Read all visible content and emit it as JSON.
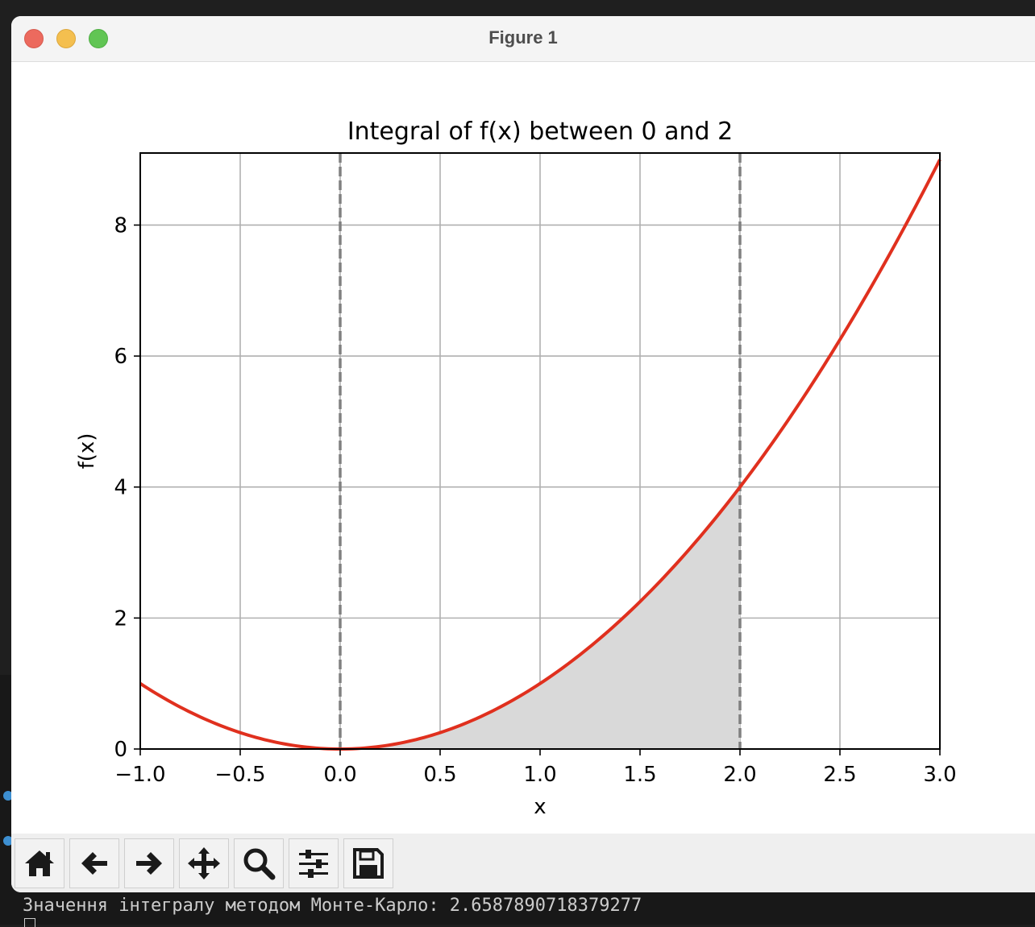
{
  "window": {
    "title": "Figure 1"
  },
  "terminal": {
    "output_line": "Значення інтегралу методом Монте-Карло: 2.6587890718379277"
  },
  "toolbar": {
    "buttons": [
      {
        "name": "home-button",
        "icon": "home-icon"
      },
      {
        "name": "back-button",
        "icon": "arrow-left-icon"
      },
      {
        "name": "forward-button",
        "icon": "arrow-right-icon"
      },
      {
        "name": "pan-button",
        "icon": "move-icon"
      },
      {
        "name": "zoom-button",
        "icon": "magnifier-icon"
      },
      {
        "name": "configure-subplots-button",
        "icon": "sliders-icon"
      },
      {
        "name": "save-button",
        "icon": "floppy-disk-icon"
      }
    ]
  },
  "chart_data": {
    "type": "line",
    "title": "Integral of f(x) between 0 and 2",
    "xlabel": "x",
    "ylabel": "f(x)",
    "xlim": [
      -1.0,
      3.0
    ],
    "ylim": [
      0,
      9.1
    ],
    "xticks": [
      "−1.0",
      "−0.5",
      "0.0",
      "0.5",
      "1.0",
      "1.5",
      "2.0",
      "2.5",
      "3.0"
    ],
    "xtick_values": [
      -1.0,
      -0.5,
      0.0,
      0.5,
      1.0,
      1.5,
      2.0,
      2.5,
      3.0
    ],
    "yticks": [
      "0",
      "2",
      "4",
      "6",
      "8"
    ],
    "ytick_values": [
      0,
      2,
      4,
      6,
      8
    ],
    "grid": true,
    "series": [
      {
        "x": [
          -1.0,
          -0.75,
          -0.5,
          -0.25,
          0.0,
          0.25,
          0.5,
          0.75,
          1.0,
          1.25,
          1.5,
          1.75,
          2.0,
          2.25,
          2.5,
          2.75,
          3.0
        ],
        "y": [
          1.0,
          0.5625,
          0.25,
          0.0625,
          0.0,
          0.0625,
          0.25,
          0.5625,
          1.0,
          1.5625,
          2.25,
          3.0625,
          4.0,
          5.0625,
          6.25,
          7.5625,
          9.0
        ],
        "color": "#e0301e"
      }
    ],
    "shaded_region": {
      "from": 0.0,
      "to": 2.0,
      "color": "#d9d9d9"
    },
    "vertical_lines": [
      0.0,
      2.0
    ],
    "vertical_line_color": "#808080"
  }
}
